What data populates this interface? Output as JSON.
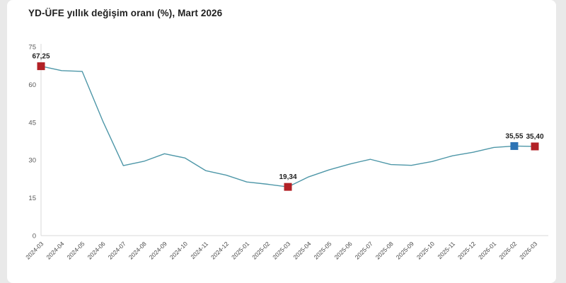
{
  "page": {
    "background_color": "#e9e9e9",
    "card_color": "#ffffff"
  },
  "header": {
    "title": "YD-ÜFE yıllık değişim oranı (%), Mart 2026"
  },
  "chart_data": {
    "type": "line",
    "title": "YD-ÜFE yıllık değişim oranı (%), Mart 2026",
    "xlabel": "",
    "ylabel": "",
    "ylim": [
      0,
      75
    ],
    "yticks": [
      0,
      15,
      30,
      45,
      60,
      75
    ],
    "grid": false,
    "legend": "none",
    "line_color": "#4e97a8",
    "axis_color": "#d9d9d9",
    "categories": [
      "2024-03",
      "2024-04",
      "2024-05",
      "2024-06",
      "2024-07",
      "2024-08",
      "2024-09",
      "2024-10",
      "2024-11",
      "2024-12",
      "2025-01",
      "2025-02",
      "2025-03",
      "2025-04",
      "2025-05",
      "2025-06",
      "2025-07",
      "2025-08",
      "2025-09",
      "2025-10",
      "2025-11",
      "2025-12",
      "2026-01",
      "2026-02",
      "2026-03"
    ],
    "series": [
      {
        "name": "YD-ÜFE yıllık değişim oranı (%)",
        "values": [
          67.25,
          65.5,
          65.2,
          45.5,
          27.8,
          29.5,
          32.5,
          30.8,
          25.8,
          24.0,
          21.3,
          20.4,
          19.34,
          23.3,
          26.1,
          28.4,
          30.3,
          28.2,
          27.9,
          29.4,
          31.7,
          33.1,
          35.0,
          35.55,
          35.4
        ]
      }
    ],
    "annotations": [
      {
        "category": "2024-03",
        "index": 0,
        "label": "67,25",
        "marker": "square",
        "marker_color": "#b22126"
      },
      {
        "category": "2025-03",
        "index": 12,
        "label": "19,34",
        "marker": "square",
        "marker_color": "#b22126"
      },
      {
        "category": "2026-02",
        "index": 23,
        "label": "35,55",
        "marker": "square",
        "marker_color": "#2e74b5"
      },
      {
        "category": "2026-03",
        "index": 24,
        "label": "35,40",
        "marker": "square",
        "marker_color": "#b22126"
      }
    ]
  }
}
